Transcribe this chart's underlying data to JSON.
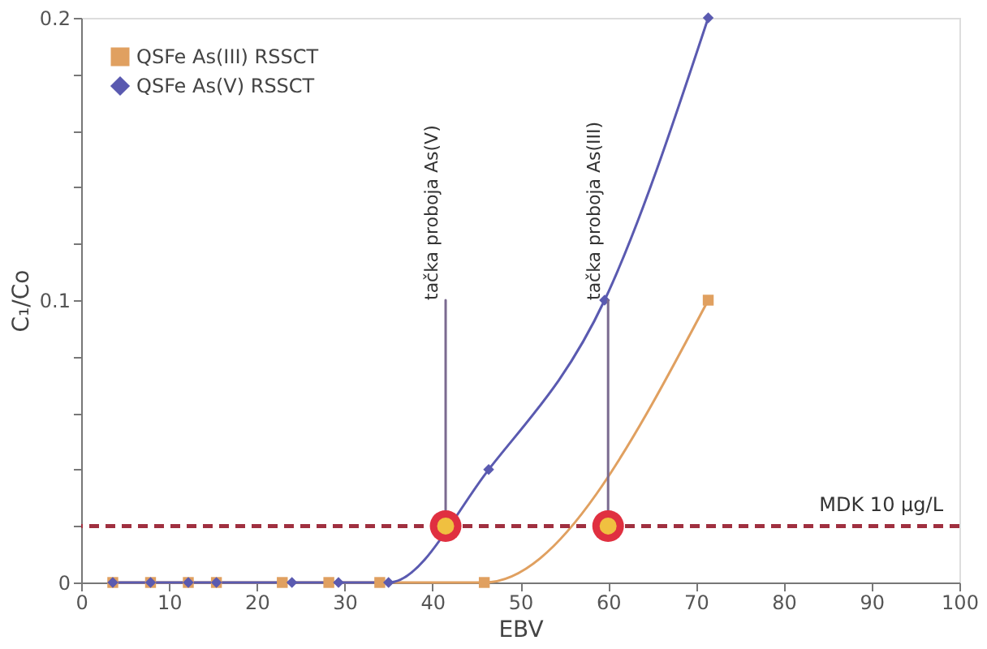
{
  "chart_data": {
    "type": "line",
    "xlabel": "EBV",
    "ylabel": "C₁/Co",
    "xlim": [
      0,
      100
    ],
    "xticks": [
      0,
      10,
      20,
      30,
      40,
      50,
      60,
      70,
      80,
      90,
      100
    ],
    "ylim": [
      0,
      0.2
    ],
    "yticks": [
      0,
      {
        "value": 0.02,
        "label": null
      },
      {
        "value": 0.04,
        "label": null
      },
      {
        "value": 0.06,
        "label": null
      },
      {
        "value": 0.08,
        "label": null
      },
      0.1,
      {
        "value": 0.12,
        "label": null
      },
      {
        "value": 0.14,
        "label": null
      },
      {
        "value": 0.16,
        "label": null
      },
      {
        "value": 0.18,
        "label": null
      },
      0.2
    ],
    "series": [
      {
        "name": "QSFe As(III) RSSCT",
        "color": "#e0a060",
        "marker": "square",
        "x": [
          3.6,
          7.9,
          12.2,
          15.4,
          22.9,
          28.2,
          34.0,
          45.9,
          71.4
        ],
        "values": [
          0,
          0,
          0,
          0,
          0,
          0,
          0,
          0,
          0.1
        ]
      },
      {
        "name": "QSFe As(V) RSSCT",
        "color": "#5a5ab0",
        "marker": "diamond",
        "x": [
          3.6,
          7.9,
          12.2,
          15.4,
          24.0,
          29.3,
          35.0,
          46.4,
          59.6,
          71.4
        ],
        "values": [
          0,
          0,
          0,
          0,
          0,
          0,
          0,
          0.04,
          0.1,
          0.2
        ]
      }
    ],
    "ref_lines": [
      {
        "axis": "y",
        "value": 0.02,
        "label": "MDK 10 μg/L",
        "color": "#a03040",
        "line_style": "dashed"
      }
    ],
    "annotations": [
      {
        "text": "tačka proboja As(V)",
        "x": 41.5,
        "y": 0.02
      },
      {
        "text": "tačka proboja As(III)",
        "x": 60,
        "y": 0.02
      }
    ],
    "legend": "top left",
    "grid": false
  }
}
